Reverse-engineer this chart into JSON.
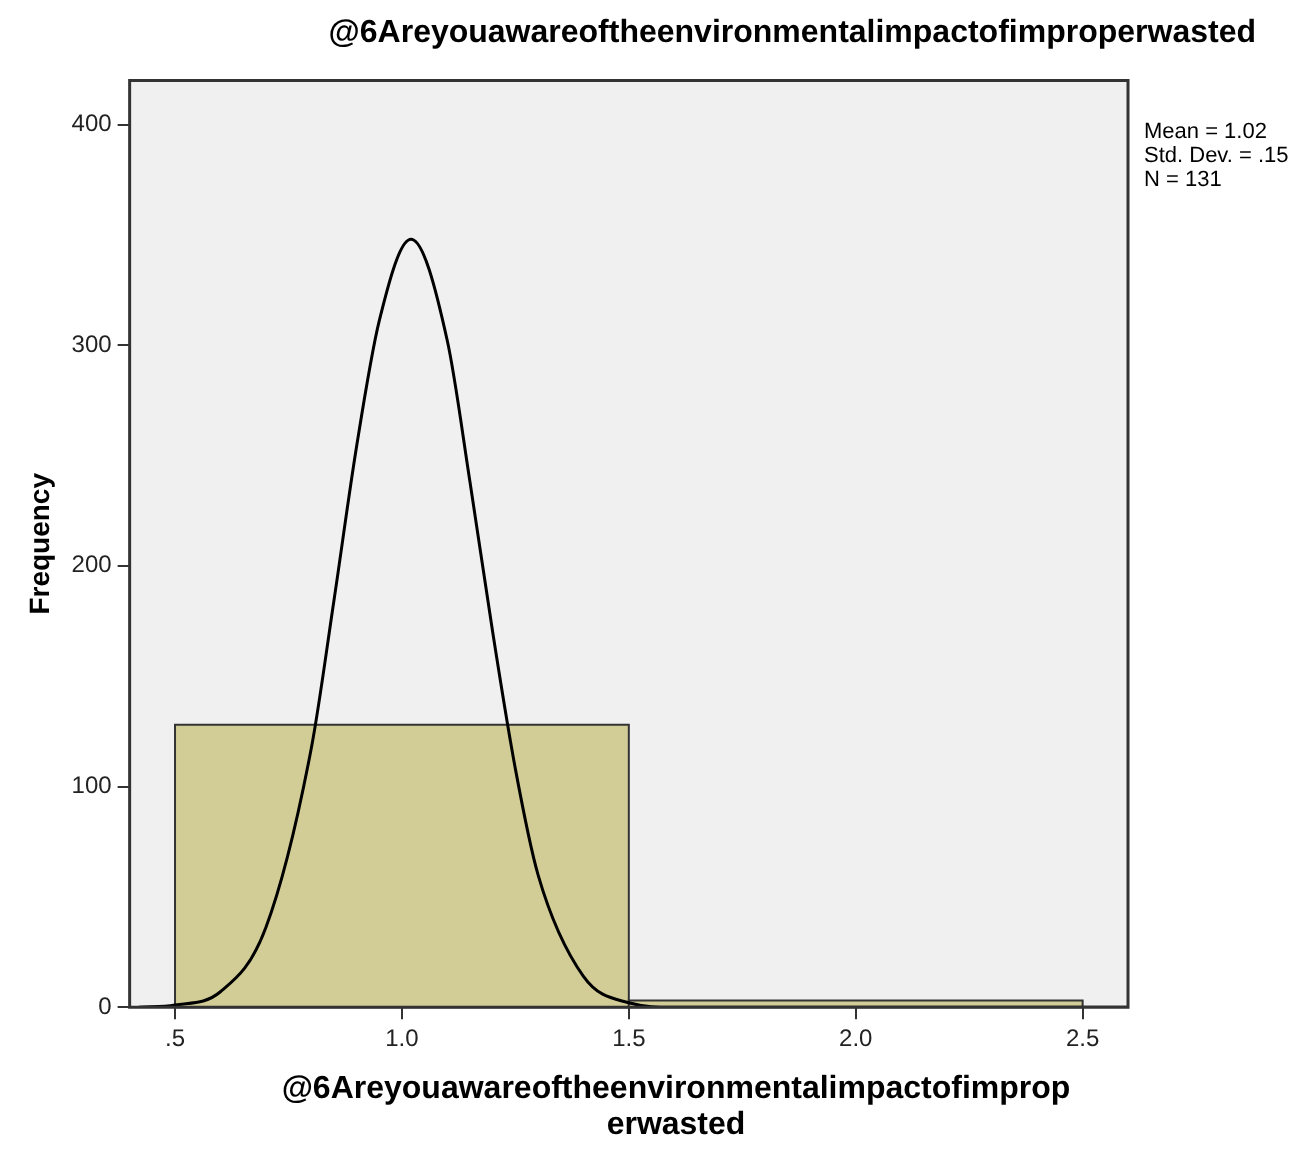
{
  "chart_data": {
    "type": "histogram",
    "title": "@6Areyouawareoftheenvironmentalimpactofimproperwasted",
    "xlabel": "@6Areyouawareoftheenvironmentalimpactofimproperwasted",
    "ylabel": "Frequency",
    "bins": [
      0.5,
      1.5,
      2.5
    ],
    "values": [
      128,
      3
    ],
    "color": "#d2cd96",
    "series": [
      {
        "type": "line",
        "color": "#000000",
        "x": [
          0.42,
          0.5,
          0.6,
          0.7,
          0.8,
          0.85,
          0.9,
          0.95,
          1.02,
          1.1,
          1.15,
          1.2,
          1.25,
          1.3,
          1.4,
          1.5,
          1.6,
          2.6
        ],
        "values": [
          0,
          1,
          7,
          36,
          117,
          184,
          254,
          311,
          348,
          302,
          238,
          170,
          108,
          60,
          14,
          2,
          0,
          0
        ]
      }
    ],
    "xlim": [
      0.4,
      2.6
    ],
    "ylim": [
      0,
      420
    ],
    "xticks": [
      {
        "value": 0.5,
        "label": ".5"
      },
      {
        "value": 1,
        "label": "1.0"
      },
      {
        "value": 1.5,
        "label": "1.5"
      },
      {
        "value": 2,
        "label": "2.0"
      },
      {
        "value": 2.5,
        "label": "2.5"
      }
    ],
    "yticks": [
      0,
      100,
      200,
      300,
      400
    ],
    "grid": false,
    "legend": false,
    "annotations": [
      "Mean = 1.02",
      "Std. Dev. = .15",
      "N = 131"
    ]
  }
}
